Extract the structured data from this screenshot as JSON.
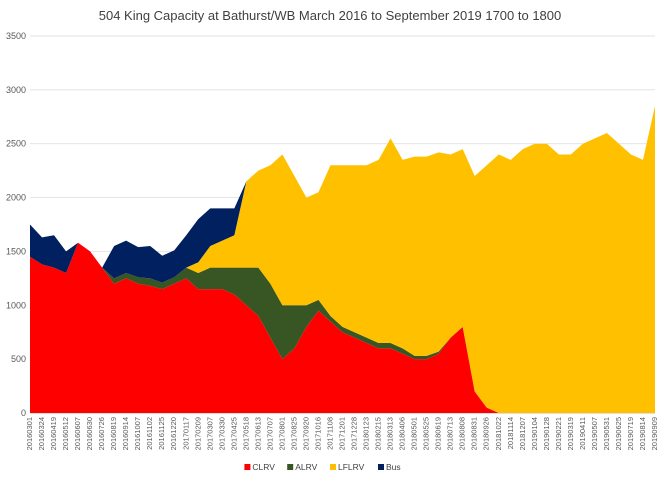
{
  "chart_data": {
    "type": "area",
    "title": "504 King Capacity at Bathurst/WB March 2016 to September 2019  1700 to 1800",
    "xlabel": "",
    "ylabel": "",
    "ylim": [
      0,
      3500
    ],
    "yticks": [
      0,
      500,
      1000,
      1500,
      2000,
      2500,
      3000,
      3500
    ],
    "grid": true,
    "stacked": true,
    "legend_position": "bottom",
    "x_tick_labels": [
      "20160301",
      "20160324",
      "20160419",
      "20160512",
      "20160607",
      "20160630",
      "20160726",
      "20160819",
      "20160914",
      "20161007",
      "20161102",
      "20161125",
      "20161220",
      "20170117",
      "20170209",
      "20170307",
      "20170330",
      "20170425",
      "20170518",
      "20170613",
      "20170707",
      "20170801",
      "20170825",
      "20170920",
      "20171016",
      "20171108",
      "20171201",
      "20171228",
      "20180123",
      "20180215",
      "20180313",
      "20180406",
      "20180501",
      "20180525",
      "20180619",
      "20180713",
      "20180808",
      "20180831",
      "20180926",
      "20181022",
      "20181114",
      "20181207",
      "20190104",
      "20190128",
      "20190221",
      "20190319",
      "20190411",
      "20190507",
      "20190531",
      "20190625",
      "20190719",
      "20190814",
      "20190909"
    ],
    "series": [
      {
        "name": "CLRV",
        "color": "#ff0000",
        "values": [
          1450,
          1380,
          1350,
          1300,
          1580,
          1500,
          1350,
          1200,
          1250,
          1200,
          1180,
          1150,
          1200,
          1250,
          1150,
          1150,
          1150,
          1100,
          1000,
          900,
          700,
          500,
          600,
          800,
          950,
          850,
          750,
          700,
          650,
          600,
          600,
          550,
          500,
          500,
          550,
          700,
          800,
          200,
          50,
          0,
          0,
          0,
          0,
          0,
          0,
          0,
          0,
          0,
          0,
          0,
          0,
          0,
          0
        ]
      },
      {
        "name": "ALRV",
        "color": "#375623",
        "values": [
          0,
          0,
          0,
          0,
          0,
          0,
          0,
          50,
          50,
          60,
          70,
          60,
          60,
          100,
          150,
          200,
          200,
          250,
          350,
          450,
          500,
          500,
          400,
          200,
          100,
          50,
          50,
          50,
          50,
          50,
          50,
          50,
          30,
          30,
          20,
          0,
          0,
          0,
          0,
          0,
          0,
          0,
          0,
          0,
          0,
          0,
          0,
          0,
          0,
          0,
          0,
          0,
          0
        ]
      },
      {
        "name": "LFLRV",
        "color": "#ffc000",
        "values": [
          0,
          0,
          0,
          0,
          0,
          0,
          0,
          0,
          0,
          0,
          0,
          0,
          0,
          0,
          100,
          200,
          250,
          300,
          800,
          900,
          1100,
          1400,
          1200,
          1000,
          1000,
          1400,
          1500,
          1550,
          1600,
          1700,
          1900,
          1750,
          1850,
          1850,
          1850,
          1700,
          1650,
          2000,
          2250,
          2400,
          2350,
          2450,
          2500,
          2500,
          2400,
          2400,
          2500,
          2550,
          2600,
          2500,
          2400,
          2350,
          2850
        ]
      },
      {
        "name": "Bus",
        "color": "#002060",
        "values": [
          300,
          250,
          300,
          200,
          0,
          0,
          0,
          300,
          300,
          280,
          300,
          250,
          250,
          300,
          400,
          350,
          300,
          250,
          0,
          0,
          0,
          0,
          0,
          0,
          0,
          0,
          0,
          0,
          0,
          0,
          0,
          0,
          0,
          0,
          0,
          0,
          0,
          0,
          0,
          0,
          0,
          0,
          0,
          0,
          0,
          0,
          0,
          0,
          0,
          0,
          0,
          0,
          0
        ]
      }
    ]
  }
}
